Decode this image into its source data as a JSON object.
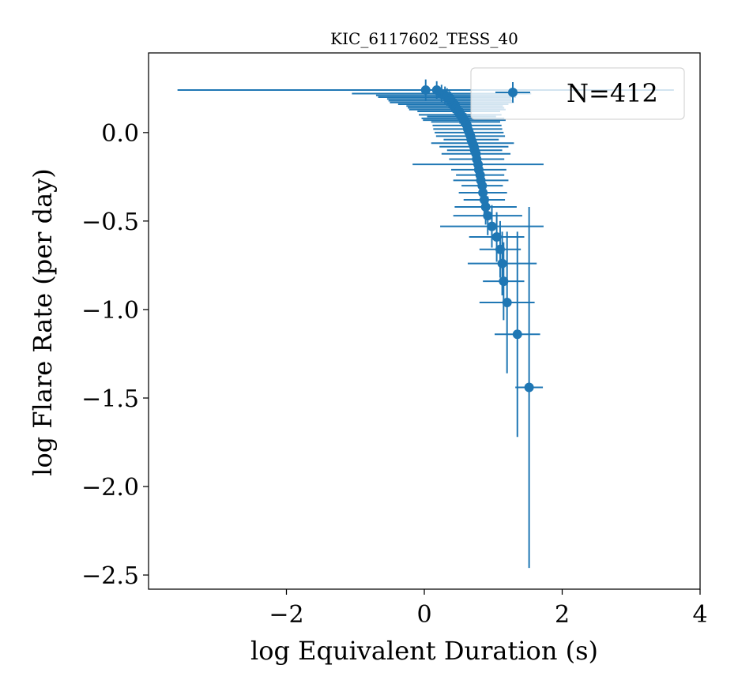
{
  "chart_data": {
    "type": "scatter",
    "title": "KIC_6117602_TESS_40",
    "xlabel": "log Equivalent Duration (s)",
    "ylabel": "log Flare Rate (per day)",
    "xlim": [
      -4.0,
      4.0
    ],
    "ylim": [
      -2.58,
      0.45
    ],
    "xticks": [
      -2,
      0,
      2,
      4
    ],
    "xtick_labels": [
      "−2",
      "0",
      "2",
      "4"
    ],
    "yticks": [
      0.0,
      -0.5,
      -1.0,
      -1.5,
      -2.0,
      -2.5
    ],
    "ytick_labels": [
      "0.0",
      "−0.5",
      "−1.0",
      "−1.5",
      "−2.0",
      "−2.5"
    ],
    "grid": false,
    "legend": {
      "location": "upper right",
      "entries": [
        "N=412"
      ]
    },
    "series_color": "#1f77b4",
    "series": [
      {
        "name": "N=412",
        "marker": "o",
        "errorbars": true,
        "points": [
          {
            "x": 0.02,
            "y": 0.24,
            "xerr": 3.6,
            "yerr": 0.06
          },
          {
            "x": 0.18,
            "y": 0.24,
            "xerr": 1.6,
            "yerr": 0.05
          },
          {
            "x": 0.25,
            "y": 0.22,
            "xerr": 1.3,
            "yerr": 0.05
          },
          {
            "x": 0.3,
            "y": 0.21,
            "xerr": 1.0,
            "yerr": 0.05
          },
          {
            "x": 0.33,
            "y": 0.2,
            "xerr": 1.0,
            "yerr": 0.05
          },
          {
            "x": 0.36,
            "y": 0.19,
            "xerr": 0.9,
            "yerr": 0.05
          },
          {
            "x": 0.38,
            "y": 0.18,
            "xerr": 0.9,
            "yerr": 0.05
          },
          {
            "x": 0.4,
            "y": 0.17,
            "xerr": 0.9,
            "yerr": 0.05
          },
          {
            "x": 0.42,
            "y": 0.16,
            "xerr": 0.8,
            "yerr": 0.05
          },
          {
            "x": 0.44,
            "y": 0.15,
            "xerr": 0.7,
            "yerr": 0.05
          },
          {
            "x": 0.46,
            "y": 0.14,
            "xerr": 0.7,
            "yerr": 0.05
          },
          {
            "x": 0.48,
            "y": 0.13,
            "xerr": 0.7,
            "yerr": 0.05
          },
          {
            "x": 0.5,
            "y": 0.12,
            "xerr": 0.6,
            "yerr": 0.05
          },
          {
            "x": 0.52,
            "y": 0.1,
            "xerr": 0.6,
            "yerr": 0.05
          },
          {
            "x": 0.54,
            "y": 0.09,
            "xerr": 0.5,
            "yerr": 0.05
          },
          {
            "x": 0.56,
            "y": 0.08,
            "xerr": 0.6,
            "yerr": 0.05
          },
          {
            "x": 0.58,
            "y": 0.07,
            "xerr": 0.6,
            "yerr": 0.05
          },
          {
            "x": 0.6,
            "y": 0.06,
            "xerr": 0.5,
            "yerr": 0.05
          },
          {
            "x": 0.62,
            "y": 0.04,
            "xerr": 0.5,
            "yerr": 0.05
          },
          {
            "x": 0.63,
            "y": 0.02,
            "xerr": 0.5,
            "yerr": 0.05
          },
          {
            "x": 0.65,
            "y": 0.0,
            "xerr": 0.5,
            "yerr": 0.05
          },
          {
            "x": 0.67,
            "y": -0.02,
            "xerr": 0.5,
            "yerr": 0.05
          },
          {
            "x": 0.68,
            "y": -0.04,
            "xerr": 0.4,
            "yerr": 0.05
          },
          {
            "x": 0.7,
            "y": -0.06,
            "xerr": 0.6,
            "yerr": 0.05
          },
          {
            "x": 0.72,
            "y": -0.08,
            "xerr": 0.5,
            "yerr": 0.05
          },
          {
            "x": 0.73,
            "y": -0.1,
            "xerr": 0.4,
            "yerr": 0.06
          },
          {
            "x": 0.75,
            "y": -0.12,
            "xerr": 0.5,
            "yerr": 0.06
          },
          {
            "x": 0.76,
            "y": -0.15,
            "xerr": 0.4,
            "yerr": 0.06
          },
          {
            "x": 0.78,
            "y": -0.18,
            "xerr": 0.95,
            "yerr": 0.06
          },
          {
            "x": 0.79,
            "y": -0.21,
            "xerr": 0.4,
            "yerr": 0.06
          },
          {
            "x": 0.81,
            "y": -0.24,
            "xerr": 0.35,
            "yerr": 0.07
          },
          {
            "x": 0.82,
            "y": -0.27,
            "xerr": 0.4,
            "yerr": 0.07
          },
          {
            "x": 0.84,
            "y": -0.3,
            "xerr": 0.3,
            "yerr": 0.08
          },
          {
            "x": 0.85,
            "y": -0.34,
            "xerr": 0.35,
            "yerr": 0.08
          },
          {
            "x": 0.87,
            "y": -0.38,
            "xerr": 0.3,
            "yerr": 0.09
          },
          {
            "x": 0.89,
            "y": -0.42,
            "xerr": 0.45,
            "yerr": 0.1
          },
          {
            "x": 0.92,
            "y": -0.47,
            "xerr": 0.5,
            "yerr": 0.11
          },
          {
            "x": 0.98,
            "y": -0.53,
            "xerr": 0.75,
            "yerr": 0.12
          },
          {
            "x": 1.05,
            "y": -0.59,
            "xerr": 0.4,
            "yerr": 0.14
          },
          {
            "x": 1.1,
            "y": -0.66,
            "xerr": 0.3,
            "yerr": 0.16
          },
          {
            "x": 1.13,
            "y": -0.74,
            "xerr": 0.5,
            "yerr": 0.18
          },
          {
            "x": 1.15,
            "y": -0.84,
            "xerr": 0.3,
            "yerr": 0.22
          },
          {
            "x": 1.2,
            "y": -0.96,
            "xerr": 0.4,
            "yerr": 0.4
          },
          {
            "x": 1.35,
            "y": -1.14,
            "xerr": 0.33,
            "yerr": 0.58
          },
          {
            "x": 1.52,
            "y": -1.44,
            "xerr": 0.2,
            "yerr": 1.02
          }
        ]
      }
    ]
  }
}
